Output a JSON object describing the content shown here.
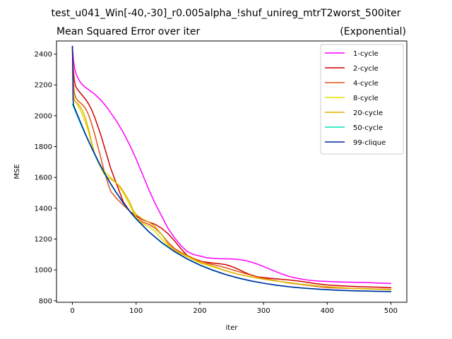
{
  "chart_data": {
    "type": "line",
    "suptitle": "test_u041_Win[-40,-30]_r0.005alpha_!shuf_unireg_mtrT2worst_500iter",
    "title": "Mean Squared Error over iter",
    "title_right": "(Exponential)",
    "xlabel": "iter",
    "ylabel": "MSE",
    "xlim": [
      -25,
      525
    ],
    "ylim": [
      790,
      2485
    ],
    "xticks": [
      0,
      100,
      200,
      300,
      400,
      500
    ],
    "yticks": [
      800,
      1000,
      1200,
      1400,
      1600,
      1800,
      2000,
      2200,
      2400
    ],
    "grid": false,
    "legend": "top-right",
    "series": [
      {
        "name": "1-cycle",
        "color": "#ff00ff",
        "x": [
          0,
          1,
          2,
          3,
          5,
          8,
          12,
          16,
          20,
          25,
          30,
          35,
          40,
          45,
          50,
          55,
          60,
          70,
          80,
          90,
          100,
          110,
          120,
          130,
          140,
          150,
          160,
          170,
          180,
          190,
          200,
          210,
          220,
          230,
          240,
          250,
          260,
          270,
          280,
          290,
          300,
          310,
          320,
          330,
          340,
          350,
          360,
          370,
          380,
          390,
          400,
          420,
          440,
          460,
          480,
          500
        ],
        "y": [
          2450,
          2390,
          2350,
          2320,
          2280,
          2250,
          2220,
          2200,
          2185,
          2170,
          2155,
          2140,
          2120,
          2100,
          2075,
          2050,
          2020,
          1960,
          1890,
          1810,
          1720,
          1620,
          1520,
          1430,
          1350,
          1270,
          1210,
          1160,
          1120,
          1100,
          1090,
          1080,
          1075,
          1073,
          1072,
          1071,
          1068,
          1062,
          1052,
          1038,
          1022,
          1005,
          988,
          972,
          958,
          948,
          940,
          934,
          930,
          927,
          925,
          922,
          920,
          918,
          915,
          912
        ]
      },
      {
        "name": "2-cycle",
        "color": "#d00000",
        "x": [
          0,
          1,
          2,
          3,
          5,
          8,
          12,
          16,
          20,
          25,
          30,
          35,
          40,
          45,
          50,
          55,
          60,
          70,
          80,
          90,
          95,
          100,
          110,
          120,
          130,
          140,
          150,
          160,
          170,
          180,
          190,
          200,
          210,
          220,
          230,
          240,
          250,
          260,
          270,
          280,
          290,
          300,
          310,
          320,
          340,
          360,
          380,
          400,
          420,
          440,
          460,
          480,
          500
        ],
        "y": [
          2450,
          2330,
          2270,
          2230,
          2190,
          2170,
          2150,
          2130,
          2110,
          2080,
          2040,
          1990,
          1930,
          1870,
          1800,
          1730,
          1660,
          1550,
          1440,
          1380,
          1365,
          1350,
          1325,
          1310,
          1295,
          1270,
          1235,
          1190,
          1140,
          1095,
          1070,
          1058,
          1050,
          1045,
          1040,
          1035,
          1022,
          1005,
          985,
          968,
          956,
          950,
          946,
          942,
          935,
          925,
          912,
          902,
          897,
          893,
          890,
          888,
          885
        ]
      },
      {
        "name": "4-cycle",
        "color": "#e0501a",
        "x": [
          0,
          1,
          2,
          3,
          5,
          8,
          12,
          16,
          20,
          25,
          30,
          35,
          40,
          45,
          50,
          55,
          60,
          70,
          80,
          90,
          95,
          100,
          110,
          120,
          130,
          140,
          150,
          160,
          170,
          180,
          190,
          200,
          210,
          220,
          230,
          240,
          250,
          260,
          270,
          280,
          290,
          300,
          320,
          340,
          360,
          380,
          400,
          420,
          440,
          460,
          480,
          500
        ],
        "y": [
          2440,
          2260,
          2190,
          2150,
          2120,
          2100,
          2085,
          2070,
          2050,
          2010,
          1950,
          1880,
          1800,
          1720,
          1640,
          1570,
          1510,
          1460,
          1420,
          1380,
          1360,
          1340,
          1310,
          1295,
          1270,
          1230,
          1180,
          1140,
          1115,
          1095,
          1075,
          1060,
          1045,
          1035,
          1025,
          1015,
          1002,
          990,
          978,
          966,
          955,
          945,
          930,
          915,
          905,
          895,
          885,
          882,
          880,
          878,
          876,
          875
        ]
      },
      {
        "name": "8-cycle",
        "color": "#e0e000",
        "x": [
          0,
          1,
          2,
          3,
          5,
          8,
          12,
          16,
          20,
          25,
          30,
          35,
          40,
          45,
          50,
          55,
          60,
          70,
          80,
          90,
          100,
          110,
          120,
          130,
          140,
          150,
          160,
          170,
          180,
          190,
          200,
          220,
          240,
          260,
          280,
          300,
          320,
          340,
          360,
          380,
          400,
          420,
          440,
          460,
          480,
          500
        ],
        "y": [
          2440,
          2180,
          2130,
          2110,
          2090,
          2070,
          2040,
          2000,
          1960,
          1900,
          1820,
          1750,
          1700,
          1670,
          1640,
          1620,
          1600,
          1560,
          1500,
          1420,
          1340,
          1300,
          1280,
          1250,
          1200,
          1160,
          1130,
          1105,
          1085,
          1065,
          1045,
          1020,
          995,
          972,
          955,
          940,
          928,
          917,
          907,
          898,
          890,
          885,
          880,
          877,
          875,
          872
        ]
      },
      {
        "name": "20-cycle",
        "color": "#e0b000",
        "x": [
          0,
          1,
          2,
          3,
          5,
          8,
          12,
          16,
          20,
          25,
          30,
          35,
          40,
          45,
          50,
          55,
          60,
          65,
          70,
          75,
          80,
          90,
          95,
          100,
          110,
          120,
          130,
          140,
          150,
          160,
          170,
          180,
          190,
          200,
          220,
          240,
          260,
          280,
          300,
          320,
          340,
          360,
          380,
          400,
          420,
          440,
          460,
          480,
          500
        ],
        "y": [
          2440,
          2140,
          2110,
          2100,
          2090,
          2080,
          2060,
          2030,
          1990,
          1920,
          1830,
          1750,
          1700,
          1660,
          1620,
          1600,
          1590,
          1575,
          1560,
          1540,
          1510,
          1440,
          1390,
          1360,
          1330,
          1310,
          1280,
          1230,
          1170,
          1130,
          1110,
          1090,
          1070,
          1050,
          1025,
          995,
          972,
          955,
          940,
          928,
          917,
          907,
          898,
          890,
          885,
          880,
          877,
          875,
          872
        ]
      },
      {
        "name": "50-cycle",
        "color": "#00e0b0",
        "x": [
          0,
          5,
          10,
          20,
          30,
          40,
          50,
          60,
          70,
          80,
          90,
          100,
          120,
          140,
          160,
          180,
          200,
          220,
          240,
          260,
          280,
          300,
          320,
          340,
          360,
          380,
          400,
          420,
          440,
          460,
          480,
          500
        ],
        "y": [
          2075,
          2025,
          1975,
          1880,
          1790,
          1705,
          1628,
          1557,
          1492,
          1432,
          1378,
          1330,
          1246,
          1176,
          1118,
          1070,
          1030,
          997,
          970,
          947,
          928,
          913,
          900,
          890,
          882,
          876,
          871,
          867,
          864,
          862,
          860,
          859
        ]
      },
      {
        "name": "99-clique",
        "color": "#0020a0",
        "x": [
          0,
          0.5,
          1,
          2,
          4,
          7,
          10,
          15,
          20,
          30,
          40,
          50,
          60,
          70,
          80,
          90,
          100,
          120,
          140,
          160,
          180,
          200,
          220,
          240,
          260,
          280,
          300,
          320,
          340,
          360,
          380,
          400,
          420,
          440,
          460,
          480,
          500
        ],
        "y": [
          2450,
          2300,
          2100,
          2065,
          2045,
          2015,
          1985,
          1935,
          1885,
          1795,
          1710,
          1632,
          1560,
          1495,
          1435,
          1380,
          1332,
          1248,
          1178,
          1120,
          1072,
          1032,
          999,
          971,
          948,
          929,
          914,
          901,
          891,
          883,
          877,
          872,
          868,
          865,
          863,
          861,
          860
        ]
      }
    ]
  }
}
